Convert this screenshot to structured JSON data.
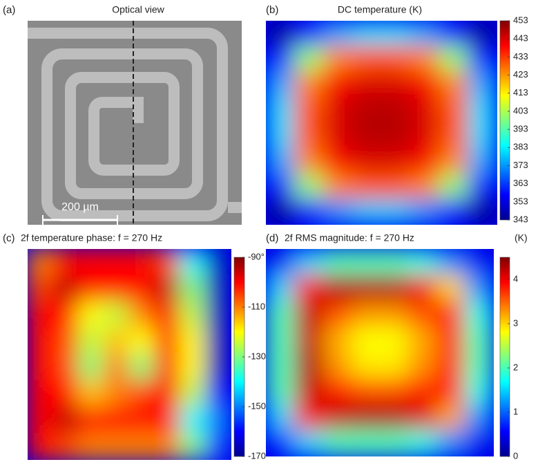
{
  "optical_panel": {
    "label": "(a)",
    "title": "Optical view",
    "scale_bar": "200 µm"
  },
  "chart_data": [
    {
      "type": "heatmap",
      "label": "(b)",
      "title": "DC temperature (K)",
      "colormap": "jet",
      "zlim": [
        343,
        453
      ],
      "zticks": [
        453,
        443,
        433,
        423,
        413,
        403,
        393,
        383,
        373,
        363,
        353,
        343
      ],
      "values": [
        [
          345,
          360,
          375,
          380,
          380,
          375,
          360,
          345
        ],
        [
          360,
          400,
          425,
          430,
          430,
          425,
          400,
          360
        ],
        [
          375,
          425,
          440,
          443,
          443,
          440,
          425,
          375
        ],
        [
          380,
          430,
          443,
          447,
          447,
          443,
          430,
          380
        ],
        [
          380,
          430,
          443,
          447,
          447,
          443,
          430,
          380
        ],
        [
          375,
          425,
          440,
          443,
          443,
          440,
          425,
          375
        ],
        [
          360,
          400,
          425,
          430,
          430,
          425,
          400,
          360
        ],
        [
          345,
          360,
          372,
          378,
          378,
          372,
          360,
          345
        ]
      ]
    },
    {
      "type": "heatmap",
      "label": "(c)",
      "title": "2f temperature phase: f = 270 Hz",
      "colormap": "jet",
      "zlim": [
        -170,
        -90
      ],
      "zticks": [
        {
          "value": -90,
          "label": "-90°"
        },
        {
          "value": -110,
          "label": "-110°"
        },
        {
          "value": -130,
          "label": "-130°"
        },
        {
          "value": -150,
          "label": "-150°"
        },
        {
          "value": -170,
          "label": "-170°"
        }
      ],
      "values": [
        [
          -110,
          -100,
          -100,
          -100,
          -100,
          -105,
          -140,
          -165
        ],
        [
          -105,
          -95,
          -100,
          -100,
          -100,
          -95,
          -130,
          -165
        ],
        [
          -100,
          -100,
          -120,
          -125,
          -110,
          -100,
          -125,
          -165
        ],
        [
          -100,
          -105,
          -125,
          -115,
          -120,
          -100,
          -120,
          -165
        ],
        [
          -100,
          -105,
          -130,
          -110,
          -130,
          -100,
          -120,
          -165
        ],
        [
          -100,
          -100,
          -115,
          -110,
          -105,
          -100,
          -125,
          -160
        ],
        [
          -100,
          -95,
          -100,
          -100,
          -100,
          -100,
          -140,
          -150
        ],
        [
          -100,
          -105,
          -110,
          -110,
          -110,
          -110,
          -130,
          -155
        ]
      ]
    },
    {
      "type": "heatmap",
      "label": "(d)",
      "title": "2f RMS magnitude: f = 270 Hz",
      "unit": "(K)",
      "colormap": "jet",
      "zlim": [
        0,
        4.5
      ],
      "zticks": [
        4,
        3,
        2,
        1,
        0
      ],
      "values": [
        [
          0.5,
          1.5,
          2,
          2,
          2,
          1.8,
          1.2,
          0.5
        ],
        [
          1.5,
          3.8,
          4.3,
          4.3,
          4.3,
          4,
          3,
          1.2
        ],
        [
          2,
          4.2,
          3.6,
          3.3,
          3.3,
          3.6,
          3.8,
          1.8
        ],
        [
          2,
          4.2,
          3.2,
          2.8,
          2.8,
          3.2,
          3.8,
          2
        ],
        [
          2,
          4.3,
          3.3,
          2.9,
          2.9,
          3.3,
          3.8,
          2
        ],
        [
          2,
          4.2,
          3.8,
          3.6,
          3.6,
          3.8,
          3.8,
          1.8
        ],
        [
          1.5,
          3.8,
          4.2,
          4.3,
          4.3,
          4.1,
          3.2,
          1.2
        ],
        [
          0.6,
          1.5,
          2,
          2,
          2,
          1.8,
          1.2,
          0.5
        ]
      ]
    }
  ]
}
